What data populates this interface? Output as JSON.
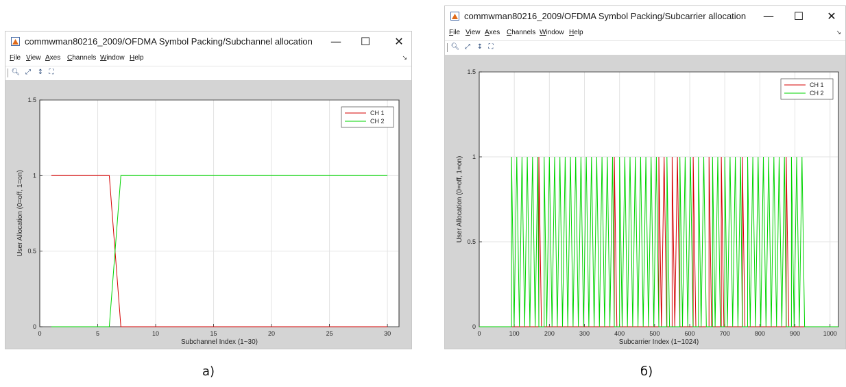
{
  "figures": [
    {
      "key": "a",
      "window_title": "commwman80216_2009/OFDMA Symbol Packing/Subchannel allocation",
      "caption": "а)",
      "menu": [
        "File",
        "View",
        "Axes",
        "Channels",
        "Window",
        "Help"
      ],
      "toolbar": [
        "zoom-in-icon",
        "zoom-out-icon",
        "pan-icon",
        "fit-icon"
      ],
      "controls": {
        "minimize": "—",
        "maximize": "☐",
        "close": "✕"
      }
    },
    {
      "key": "b",
      "window_title": "commwman80216_2009/OFDMA Symbol Packing/Subcarrier allocation",
      "caption": "б)",
      "menu": [
        "File",
        "View",
        "Axes",
        "Channels",
        "Window",
        "Help"
      ],
      "toolbar": [
        "zoom-in-icon",
        "zoom-out-icon",
        "pan-icon",
        "fit-icon"
      ],
      "controls": {
        "minimize": "—",
        "maximize": "☐",
        "close": "✕"
      }
    }
  ],
  "chart_data": [
    {
      "type": "line",
      "title": "",
      "xlabel": "Subchannel Index (1~30)",
      "ylabel": "User Allocation (0=off, 1=on)",
      "xlim": [
        0,
        31
      ],
      "ylim": [
        0,
        1.5
      ],
      "xticks": [
        0,
        5,
        10,
        15,
        20,
        25,
        30
      ],
      "yticks": [
        0,
        0.5,
        1,
        1.5
      ],
      "grid": true,
      "legend": "top-right",
      "series": [
        {
          "name": "CH 1",
          "color": "#d40000",
          "x": [
            1,
            2,
            3,
            4,
            5,
            6,
            7,
            8,
            9,
            10,
            11,
            12,
            13,
            14,
            15,
            16,
            17,
            18,
            19,
            20,
            21,
            22,
            23,
            24,
            25,
            26,
            27,
            28,
            29,
            30
          ],
          "y": [
            1,
            1,
            1,
            1,
            1,
            1,
            0,
            0,
            0,
            0,
            0,
            0,
            0,
            0,
            0,
            0,
            0,
            0,
            0,
            0,
            0,
            0,
            0,
            0,
            0,
            0,
            0,
            0,
            0,
            0
          ]
        },
        {
          "name": "CH 2",
          "color": "#00d400",
          "x": [
            1,
            2,
            3,
            4,
            5,
            6,
            7,
            8,
            9,
            10,
            11,
            12,
            13,
            14,
            15,
            16,
            17,
            18,
            19,
            20,
            21,
            22,
            23,
            24,
            25,
            26,
            27,
            28,
            29,
            30
          ],
          "y": [
            0,
            0,
            0,
            0,
            0,
            0,
            1,
            1,
            1,
            1,
            1,
            1,
            1,
            1,
            1,
            1,
            1,
            1,
            1,
            1,
            1,
            1,
            1,
            1,
            1,
            1,
            1,
            1,
            1,
            1
          ]
        }
      ]
    },
    {
      "type": "line",
      "title": "",
      "xlabel": "Subcarrier Index (1~1024)",
      "ylabel": "User Allocation (0=off, 1=on)",
      "xlim": [
        0,
        1024
      ],
      "ylim": [
        0,
        1.5
      ],
      "xticks": [
        0,
        100,
        200,
        300,
        400,
        500,
        600,
        700,
        800,
        900,
        1000
      ],
      "yticks": [
        0,
        0.5,
        1,
        1.5
      ],
      "grid": true,
      "legend": "top-right",
      "series": [
        {
          "name": "CH 1",
          "color": "#d40000",
          "pulses": [
            [
              170,
              185
            ],
            [
              385,
              400
            ],
            [
              512,
              535
            ],
            [
              550,
              572
            ],
            [
              610,
              625
            ],
            [
              655,
              665
            ],
            [
              690,
              700
            ],
            [
              750,
              765
            ],
            [
              875,
              890
            ]
          ]
        },
        {
          "name": "CH 2",
          "color": "#00d400",
          "pulses": [
            [
              92,
              170
            ],
            [
              185,
              385
            ],
            [
              400,
              512
            ],
            [
              535,
              550
            ],
            [
              572,
              610
            ],
            [
              625,
              655
            ],
            [
              665,
              690
            ],
            [
              700,
              750
            ],
            [
              765,
              875
            ],
            [
              890,
              934
            ]
          ]
        }
      ]
    }
  ]
}
